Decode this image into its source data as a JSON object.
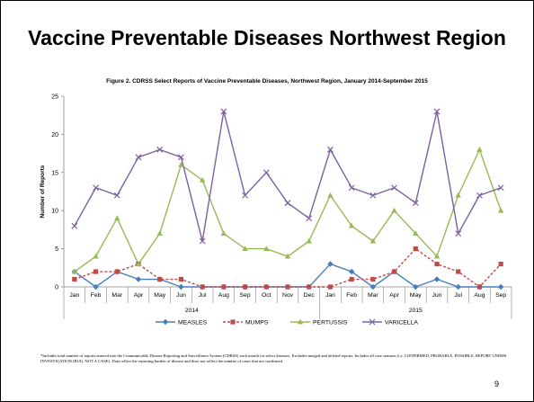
{
  "slide": {
    "title": "Vaccine Preventable Diseases Northwest Region",
    "figure_title": "Figure 2. CDRSS Select Reports of Vaccine Preventable Diseases, Northwest Region, January 2014-September 2015",
    "footnote": "*Includes total number of reports entered into the Communicable Disease Reporting and Surveillance System (CDRSS) each month for select diseases. Excludes merged and deleted reports. Includes all case statuses (i.e. CONFIRMED, PROBABLE, POSSIBLE, REPORT UNDER INVESTIGATION (RUI), NOT A CASE). Data reflect the reporting burden of disease and does not reflect the number of cases that are confirmed.",
    "page_number": "9"
  },
  "chart_data": {
    "type": "line",
    "title": "Figure 2. CDRSS Select Reports of Vaccine Preventable Diseases, Northwest Region, January 2014-September 2015",
    "ylabel": "Number of Reports",
    "xlabel": "",
    "ylim": [
      0,
      25
    ],
    "yticks": [
      0,
      5,
      10,
      15,
      20,
      25
    ],
    "grid": false,
    "legend_position": "bottom",
    "categories": [
      "Jan",
      "Feb",
      "Mar",
      "Apr",
      "May",
      "Jun",
      "Jul",
      "Aug",
      "Sep",
      "Oct",
      "Nov",
      "Dec",
      "Jan",
      "Feb",
      "Mar",
      "Apr",
      "May",
      "Jun",
      "Jul",
      "Aug",
      "Sep"
    ],
    "year_groups": [
      {
        "label": "2014",
        "months": 12
      },
      {
        "label": "2015",
        "months": 9
      }
    ],
    "series": [
      {
        "name": "MEASLES",
        "color": "#4a7ebb",
        "marker": "diamond",
        "dash": false,
        "values": [
          2,
          0,
          2,
          1,
          1,
          0,
          0,
          0,
          0,
          0,
          0,
          0,
          3,
          2,
          0,
          2,
          0,
          1,
          0,
          0,
          0
        ]
      },
      {
        "name": "MUMPS",
        "color": "#be4b48",
        "marker": "square",
        "dash": true,
        "values": [
          1,
          2,
          2,
          3,
          1,
          1,
          0,
          0,
          0,
          0,
          0,
          0,
          0,
          1,
          1,
          2,
          5,
          3,
          2,
          0,
          3
        ]
      },
      {
        "name": "PERTUSSIS",
        "color": "#98b954",
        "marker": "triangle",
        "dash": false,
        "values": [
          2,
          4,
          9,
          3,
          7,
          16,
          14,
          7,
          5,
          5,
          4,
          6,
          12,
          8,
          6,
          10,
          7,
          4,
          12,
          18,
          10
        ]
      },
      {
        "name": "VARICELLA",
        "color": "#7d60a0",
        "marker": "x",
        "dash": false,
        "values": [
          8,
          13,
          12,
          17,
          18,
          17,
          6,
          23,
          12,
          15,
          11,
          9,
          18,
          13,
          12,
          13,
          11,
          23,
          7,
          12,
          13
        ]
      }
    ]
  }
}
